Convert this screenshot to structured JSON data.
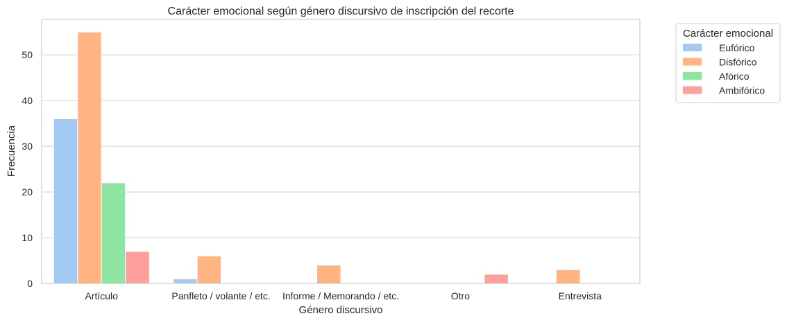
{
  "chart_data": {
    "type": "bar",
    "title": "Carácter emocional según género discursivo de inscripción del recorte",
    "xlabel": "Género discursivo",
    "ylabel": "Frecuencia",
    "categories": [
      "Artículo",
      "Panfleto / volante / etc.",
      "Informe / Memorando / etc.",
      "Otro",
      "Entrevista"
    ],
    "series": [
      {
        "name": "Eufórico",
        "color": "#a1c9f4",
        "values": [
          36,
          1,
          0,
          0,
          0
        ]
      },
      {
        "name": "Disfórico",
        "color": "#ffb482",
        "values": [
          55,
          6,
          4,
          0,
          3
        ]
      },
      {
        "name": "Afórico",
        "color": "#8de5a1",
        "values": [
          22,
          0,
          0,
          0,
          0
        ]
      },
      {
        "name": "Ambifórico",
        "color": "#ff9f9b",
        "values": [
          7,
          0,
          0,
          2,
          0
        ]
      }
    ],
    "ylim": [
      0,
      57.75
    ],
    "yticks": [
      0,
      10,
      20,
      30,
      40,
      50
    ],
    "grid": "horizontal",
    "legend": {
      "title": "Carácter emocional",
      "position": "outside-right"
    }
  }
}
